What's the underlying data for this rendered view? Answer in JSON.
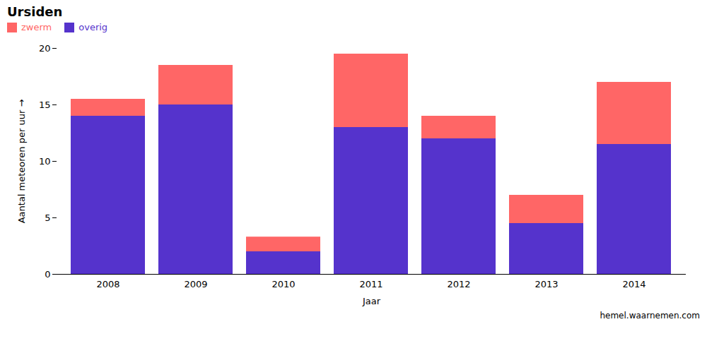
{
  "chart_data": {
    "type": "bar",
    "stacked": true,
    "title": "Ursiden",
    "xlabel": "Jaar",
    "ylabel": "Aantal meteoren per uur",
    "categories": [
      "2008",
      "2009",
      "2010",
      "2011",
      "2012",
      "2013",
      "2014"
    ],
    "series": [
      {
        "name": "overig",
        "color": "#5533cc",
        "values": [
          14.0,
          15.0,
          2.0,
          13.0,
          12.0,
          4.5,
          11.5
        ]
      },
      {
        "name": "zwerm",
        "color": "#ff6666",
        "values": [
          1.5,
          3.5,
          1.3,
          6.5,
          2.0,
          2.5,
          5.5
        ]
      }
    ],
    "ylim": [
      0,
      20
    ],
    "yticks": [
      0,
      5,
      10,
      15,
      20
    ],
    "grid": false,
    "legend": "upper left",
    "annotations": [
      "hemel.waarnemen.com"
    ]
  }
}
